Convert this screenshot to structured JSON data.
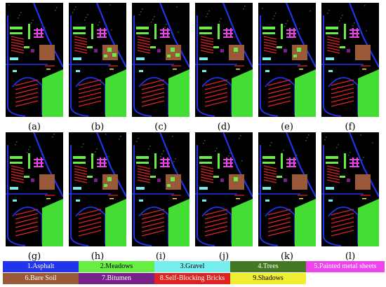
{
  "panels": [
    {
      "label": "(a)"
    },
    {
      "label": "(b)"
    },
    {
      "label": "(c)"
    },
    {
      "label": "(d)"
    },
    {
      "label": "(e)"
    },
    {
      "label": "(f)"
    },
    {
      "label": "(g)"
    },
    {
      "label": "(h)"
    },
    {
      "label": "(i)"
    },
    {
      "label": "(j)"
    },
    {
      "label": "(k)"
    },
    {
      "label": "(l)"
    }
  ],
  "legend": [
    {
      "label": "1.Asphalt",
      "color": "#2233ee",
      "text": "light"
    },
    {
      "label": "2.Meadows",
      "color": "#66ee44",
      "text": "dark"
    },
    {
      "label": "3.Gravel",
      "color": "#77eeee",
      "text": "dark"
    },
    {
      "label": "4.Trees",
      "color": "#447722",
      "text": "light"
    },
    {
      "label": "5.Painted metal sheets",
      "color": "#ee44ee",
      "text": "light"
    },
    {
      "label": "6.Bare Soil",
      "color": "#9a5a3a",
      "text": "light"
    },
    {
      "label": "7.Bitumen",
      "color": "#772288",
      "text": "light"
    },
    {
      "label": "8.Self-Blocking Bricks",
      "color": "#dd2222",
      "text": "light"
    },
    {
      "label": "9.Shadows",
      "color": "#eeee33",
      "text": "dark"
    }
  ]
}
